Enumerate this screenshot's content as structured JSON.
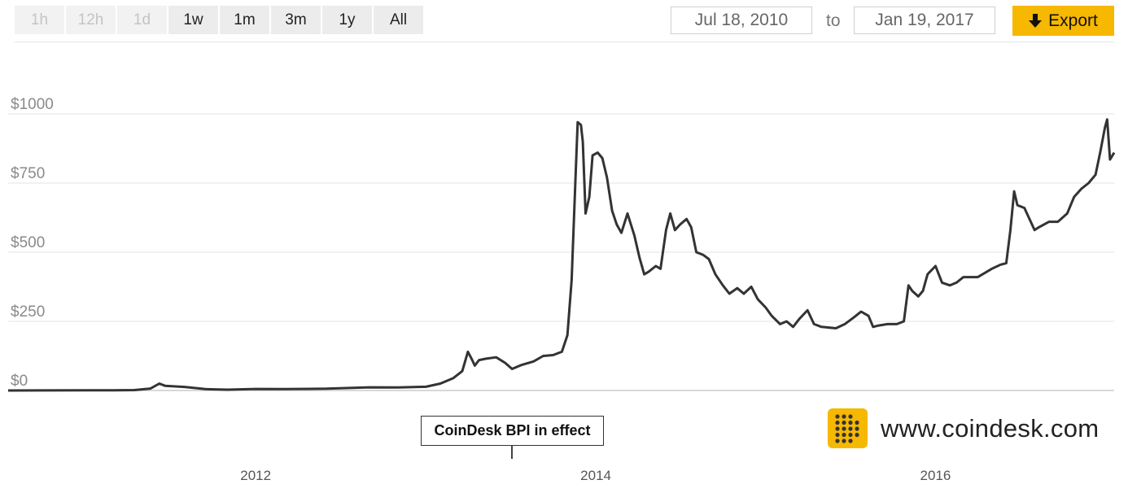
{
  "toolbar": {
    "ranges": [
      {
        "label": "1h",
        "enabled": false
      },
      {
        "label": "12h",
        "enabled": false
      },
      {
        "label": "1d",
        "enabled": false
      },
      {
        "label": "1w",
        "enabled": true
      },
      {
        "label": "1m",
        "enabled": true
      },
      {
        "label": "3m",
        "enabled": true
      },
      {
        "label": "1y",
        "enabled": true
      },
      {
        "label": "All",
        "enabled": true
      }
    ],
    "date_from": "Jul 18, 2010",
    "to_label": "to",
    "date_to": "Jan 19, 2017",
    "export_label": "Export",
    "export_icon": "download-arrow-icon",
    "accent_color": "#f6b800"
  },
  "annotation": {
    "label": "CoinDesk BPI in effect",
    "date": "2013-07-18"
  },
  "logo": {
    "text": "www.coindesk.com",
    "icon": "coindesk-grid-icon",
    "color": "#f6b800"
  },
  "chart_data": {
    "type": "line",
    "y_tick_labels": [
      "$0",
      "$250",
      "$500",
      "$750",
      "$1000"
    ],
    "y_ticks": [
      0,
      250,
      500,
      750,
      1000
    ],
    "x_tick_labels": [
      "2012",
      "2014",
      "2016"
    ],
    "x_ticks": [
      "2012-01-01",
      "2014-01-01",
      "2016-01-01"
    ],
    "ylim": [
      -50,
      1000
    ],
    "xlim": [
      "2010-07-18",
      "2017-01-19"
    ],
    "grid": true,
    "line_color": "#333333",
    "series": [
      {
        "x": [
          "2010-07-18",
          "2010-10-01",
          "2011-01-01",
          "2011-03-01",
          "2011-04-15",
          "2011-05-20",
          "2011-06-08",
          "2011-06-20",
          "2011-08-01",
          "2011-09-15",
          "2011-11-01",
          "2012-01-01",
          "2012-03-01",
          "2012-06-01",
          "2012-09-01",
          "2012-11-01",
          "2013-01-01",
          "2013-02-01",
          "2013-03-01",
          "2013-03-20",
          "2013-04-01",
          "2013-04-09",
          "2013-04-16",
          "2013-04-25",
          "2013-05-10",
          "2013-06-01",
          "2013-06-20",
          "2013-07-05",
          "2013-07-25",
          "2013-08-20",
          "2013-09-10",
          "2013-10-01",
          "2013-10-20",
          "2013-11-01",
          "2013-11-10",
          "2013-11-18",
          "2013-11-23",
          "2013-11-30",
          "2013-12-04",
          "2013-12-10",
          "2013-12-18",
          "2013-12-25",
          "2014-01-05",
          "2014-01-15",
          "2014-01-25",
          "2014-02-05",
          "2014-02-15",
          "2014-02-25",
          "2014-03-10",
          "2014-03-25",
          "2014-04-05",
          "2014-04-15",
          "2014-04-25",
          "2014-05-10",
          "2014-05-20",
          "2014-06-01",
          "2014-06-10",
          "2014-06-20",
          "2014-07-01",
          "2014-07-15",
          "2014-07-25",
          "2014-08-05",
          "2014-08-20",
          "2014-09-01",
          "2014-09-15",
          "2014-10-01",
          "2014-10-15",
          "2014-11-01",
          "2014-11-15",
          "2014-12-01",
          "2014-12-15",
          "2015-01-01",
          "2015-01-14",
          "2015-02-01",
          "2015-02-15",
          "2015-03-01",
          "2015-03-15",
          "2015-04-01",
          "2015-04-15",
          "2015-05-01",
          "2015-06-01",
          "2015-06-20",
          "2015-07-10",
          "2015-07-25",
          "2015-08-10",
          "2015-08-20",
          "2015-09-01",
          "2015-09-20",
          "2015-10-10",
          "2015-10-25",
          "2015-11-04",
          "2015-11-12",
          "2015-11-25",
          "2015-12-05",
          "2015-12-15",
          "2016-01-01",
          "2016-01-15",
          "2016-02-01",
          "2016-02-15",
          "2016-03-01",
          "2016-04-01",
          "2016-05-01",
          "2016-05-20",
          "2016-06-01",
          "2016-06-10",
          "2016-06-18",
          "2016-06-25",
          "2016-07-10",
          "2016-08-01",
          "2016-08-10",
          "2016-09-01",
          "2016-09-20",
          "2016-10-10",
          "2016-10-25",
          "2016-11-10",
          "2016-11-25",
          "2016-12-10",
          "2016-12-20",
          "2016-12-30",
          "2017-01-04",
          "2017-01-10",
          "2017-01-19"
        ],
        "y": [
          0.1,
          0.2,
          0.5,
          0.9,
          1.5,
          7,
          25,
          17,
          13,
          5,
          3,
          5.5,
          5,
          6.5,
          11.5,
          11,
          13.5,
          25,
          45,
          70,
          140,
          115,
          90,
          110,
          115,
          120,
          100,
          78,
          92,
          105,
          125,
          128,
          140,
          200,
          400,
          750,
          970,
          960,
          900,
          640,
          700,
          850,
          860,
          840,
          770,
          650,
          600,
          570,
          640,
          560,
          480,
          420,
          430,
          450,
          440,
          580,
          640,
          580,
          600,
          620,
          590,
          500,
          490,
          475,
          420,
          380,
          350,
          370,
          350,
          375,
          330,
          300,
          270,
          240,
          250,
          230,
          260,
          290,
          240,
          230,
          225,
          240,
          265,
          285,
          270,
          230,
          235,
          240,
          240,
          250,
          380,
          360,
          340,
          360,
          420,
          450,
          390,
          380,
          390,
          410,
          410,
          440,
          455,
          460,
          580,
          720,
          670,
          660,
          580,
          590,
          610,
          610,
          640,
          700,
          730,
          750,
          780,
          860,
          950,
          980,
          835,
          860
        ]
      }
    ]
  }
}
